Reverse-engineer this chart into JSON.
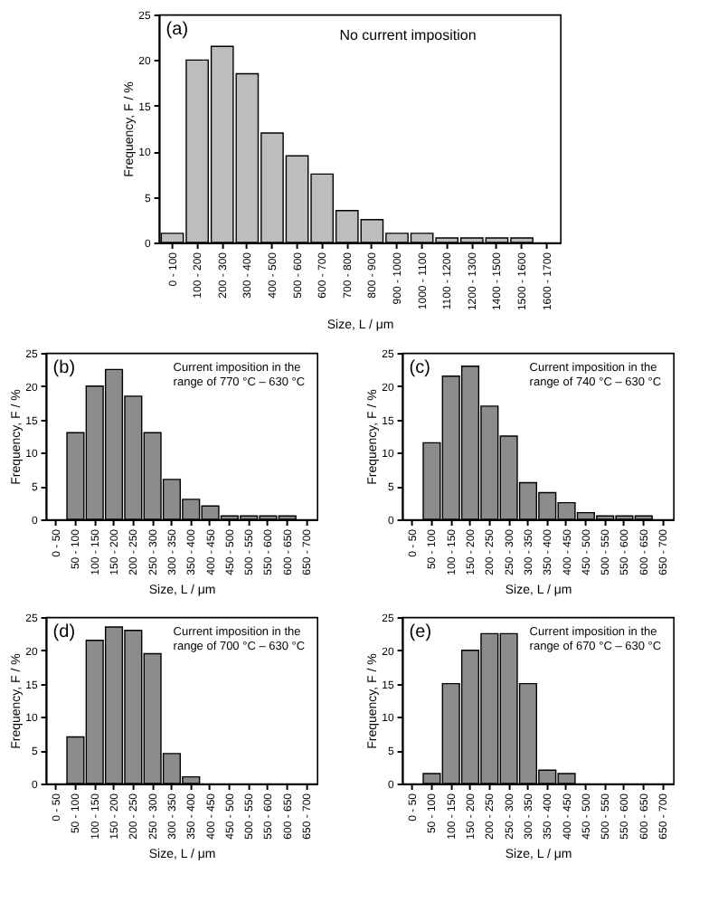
{
  "chart_data": [
    {
      "type": "bar",
      "categories": [
        "0 - 100",
        "100 - 200",
        "200 - 300",
        "300 - 400",
        "400 - 500",
        "500 - 600",
        "600 - 700",
        "700 - 800",
        "800 - 900",
        "900 - 1000",
        "1000 - 1100",
        "1100 - 1200",
        "1200 - 1300",
        "1400 - 1500",
        "1500 - 1600",
        "1600 - 1700"
      ],
      "values": [
        1,
        20,
        21.5,
        18.5,
        12,
        9.5,
        7.5,
        3.5,
        2.5,
        1,
        1,
        0.5,
        0.5,
        0.5,
        0.5,
        0
      ],
      "color": "#bdbdbd",
      "ylim": [
        0,
        25
      ],
      "yticks": [
        0,
        5,
        10,
        15,
        20,
        25
      ],
      "xlabel": "Size, L / μm",
      "ylabel": "Frequency, F / %",
      "annotations": [
        "(a)",
        "No current imposition"
      ]
    },
    {
      "type": "bar",
      "categories": [
        "0 - 50",
        "50 - 100",
        "100 - 150",
        "150 - 200",
        "200 - 250",
        "250 - 300",
        "300 - 350",
        "350 - 400",
        "400 - 450",
        "450 - 500",
        "500 - 550",
        "550 - 600",
        "600 - 650",
        "650 - 700"
      ],
      "values": [
        0,
        13,
        20,
        22.5,
        18.5,
        13,
        6,
        3,
        2,
        0.5,
        0.5,
        0.5,
        0.5,
        0
      ],
      "color": "#8c8c8c",
      "ylim": [
        0,
        25
      ],
      "yticks": [
        0,
        5,
        10,
        15,
        20,
        25
      ],
      "xlabel": "Size, L / μm",
      "ylabel": "Frequency, F / %",
      "annotations": [
        "(b)",
        "Current imposition in the range of 770 °C – 630 °C"
      ]
    },
    {
      "type": "bar",
      "categories": [
        "0 - 50",
        "50 - 100",
        "100 - 150",
        "150 - 200",
        "200 - 250",
        "250 - 300",
        "300 - 350",
        "350 - 400",
        "400 - 450",
        "450 - 500",
        "500 - 550",
        "550 - 600",
        "600 - 650",
        "650 - 700"
      ],
      "values": [
        0,
        11.5,
        21.5,
        23,
        17,
        12.5,
        5.5,
        4,
        2.5,
        1,
        0.5,
        0.5,
        0.5,
        0
      ],
      "color": "#8c8c8c",
      "ylim": [
        0,
        25
      ],
      "yticks": [
        0,
        5,
        10,
        15,
        20,
        25
      ],
      "xlabel": "Size, L / μm",
      "ylabel": "Frequency, F / %",
      "annotations": [
        "(c)",
        "Current imposition in the range of 740 °C – 630 °C"
      ]
    },
    {
      "type": "bar",
      "categories": [
        "0 - 50",
        "50 - 100",
        "100 - 150",
        "150 - 200",
        "200 - 250",
        "250 - 300",
        "300 - 350",
        "350 - 400",
        "400 - 450",
        "450 - 500",
        "500 - 550",
        "550 - 600",
        "600 - 650",
        "650 - 700"
      ],
      "values": [
        0,
        7,
        21.5,
        23.5,
        23,
        19.5,
        4.5,
        1,
        0,
        0,
        0,
        0,
        0,
        0
      ],
      "color": "#8c8c8c",
      "ylim": [
        0,
        25
      ],
      "yticks": [
        0,
        5,
        10,
        15,
        20,
        25
      ],
      "xlabel": "Size, L / μm",
      "ylabel": "Frequency, F / %",
      "annotations": [
        "(d)",
        "Current imposition in the range of 700 °C – 630 °C"
      ]
    },
    {
      "type": "bar",
      "categories": [
        "0 - 50",
        "50 - 100",
        "100 - 150",
        "150 - 200",
        "200 - 250",
        "250 - 300",
        "300 - 350",
        "350 - 400",
        "400 - 450",
        "450 - 500",
        "500 - 550",
        "550 - 600",
        "600 - 650",
        "650 - 700"
      ],
      "values": [
        0,
        1.5,
        15,
        20,
        22.5,
        22.5,
        15,
        2,
        1.5,
        0,
        0,
        0,
        0,
        0
      ],
      "color": "#8c8c8c",
      "ylim": [
        0,
        25
      ],
      "yticks": [
        0,
        5,
        10,
        15,
        20,
        25
      ],
      "xlabel": "Size, L / μm",
      "ylabel": "Frequency, F / %",
      "annotations": [
        "(e)",
        "Current imposition in the range of 670 °C – 630 °C"
      ]
    }
  ]
}
